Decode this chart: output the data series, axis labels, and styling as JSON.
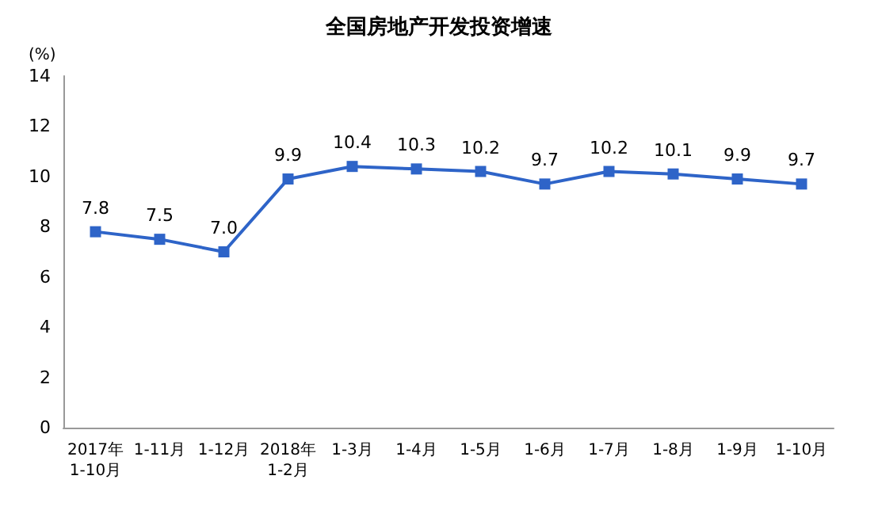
{
  "chart_data": {
    "type": "line",
    "title": "全国房地产开发投资增速",
    "ylabel": "(%)",
    "categories": [
      "2017年\n1-10月",
      "1-11月",
      "1-12月",
      "2018年\n1-2月",
      "1-3月",
      "1-4月",
      "1-5月",
      "1-6月",
      "1-7月",
      "1-8月",
      "1-9月",
      "1-10月"
    ],
    "series": [
      {
        "color": "#2e64c8",
        "values": [
          7.8,
          7.5,
          7.0,
          9.9,
          10.4,
          10.3,
          10.2,
          9.7,
          10.2,
          10.1,
          9.9,
          9.7
        ],
        "value_labels": [
          "7.8",
          "7.5",
          "7.0",
          "9.9",
          "10.4",
          "10.3",
          "10.2",
          "9.7",
          "10.2",
          "10.1",
          "9.9",
          "9.7"
        ]
      }
    ],
    "ylim": [
      0,
      14
    ],
    "yticks": [
      0,
      2,
      4,
      6,
      8,
      10,
      12,
      14
    ],
    "grid": false,
    "marker": "square",
    "line_style": "solid"
  }
}
